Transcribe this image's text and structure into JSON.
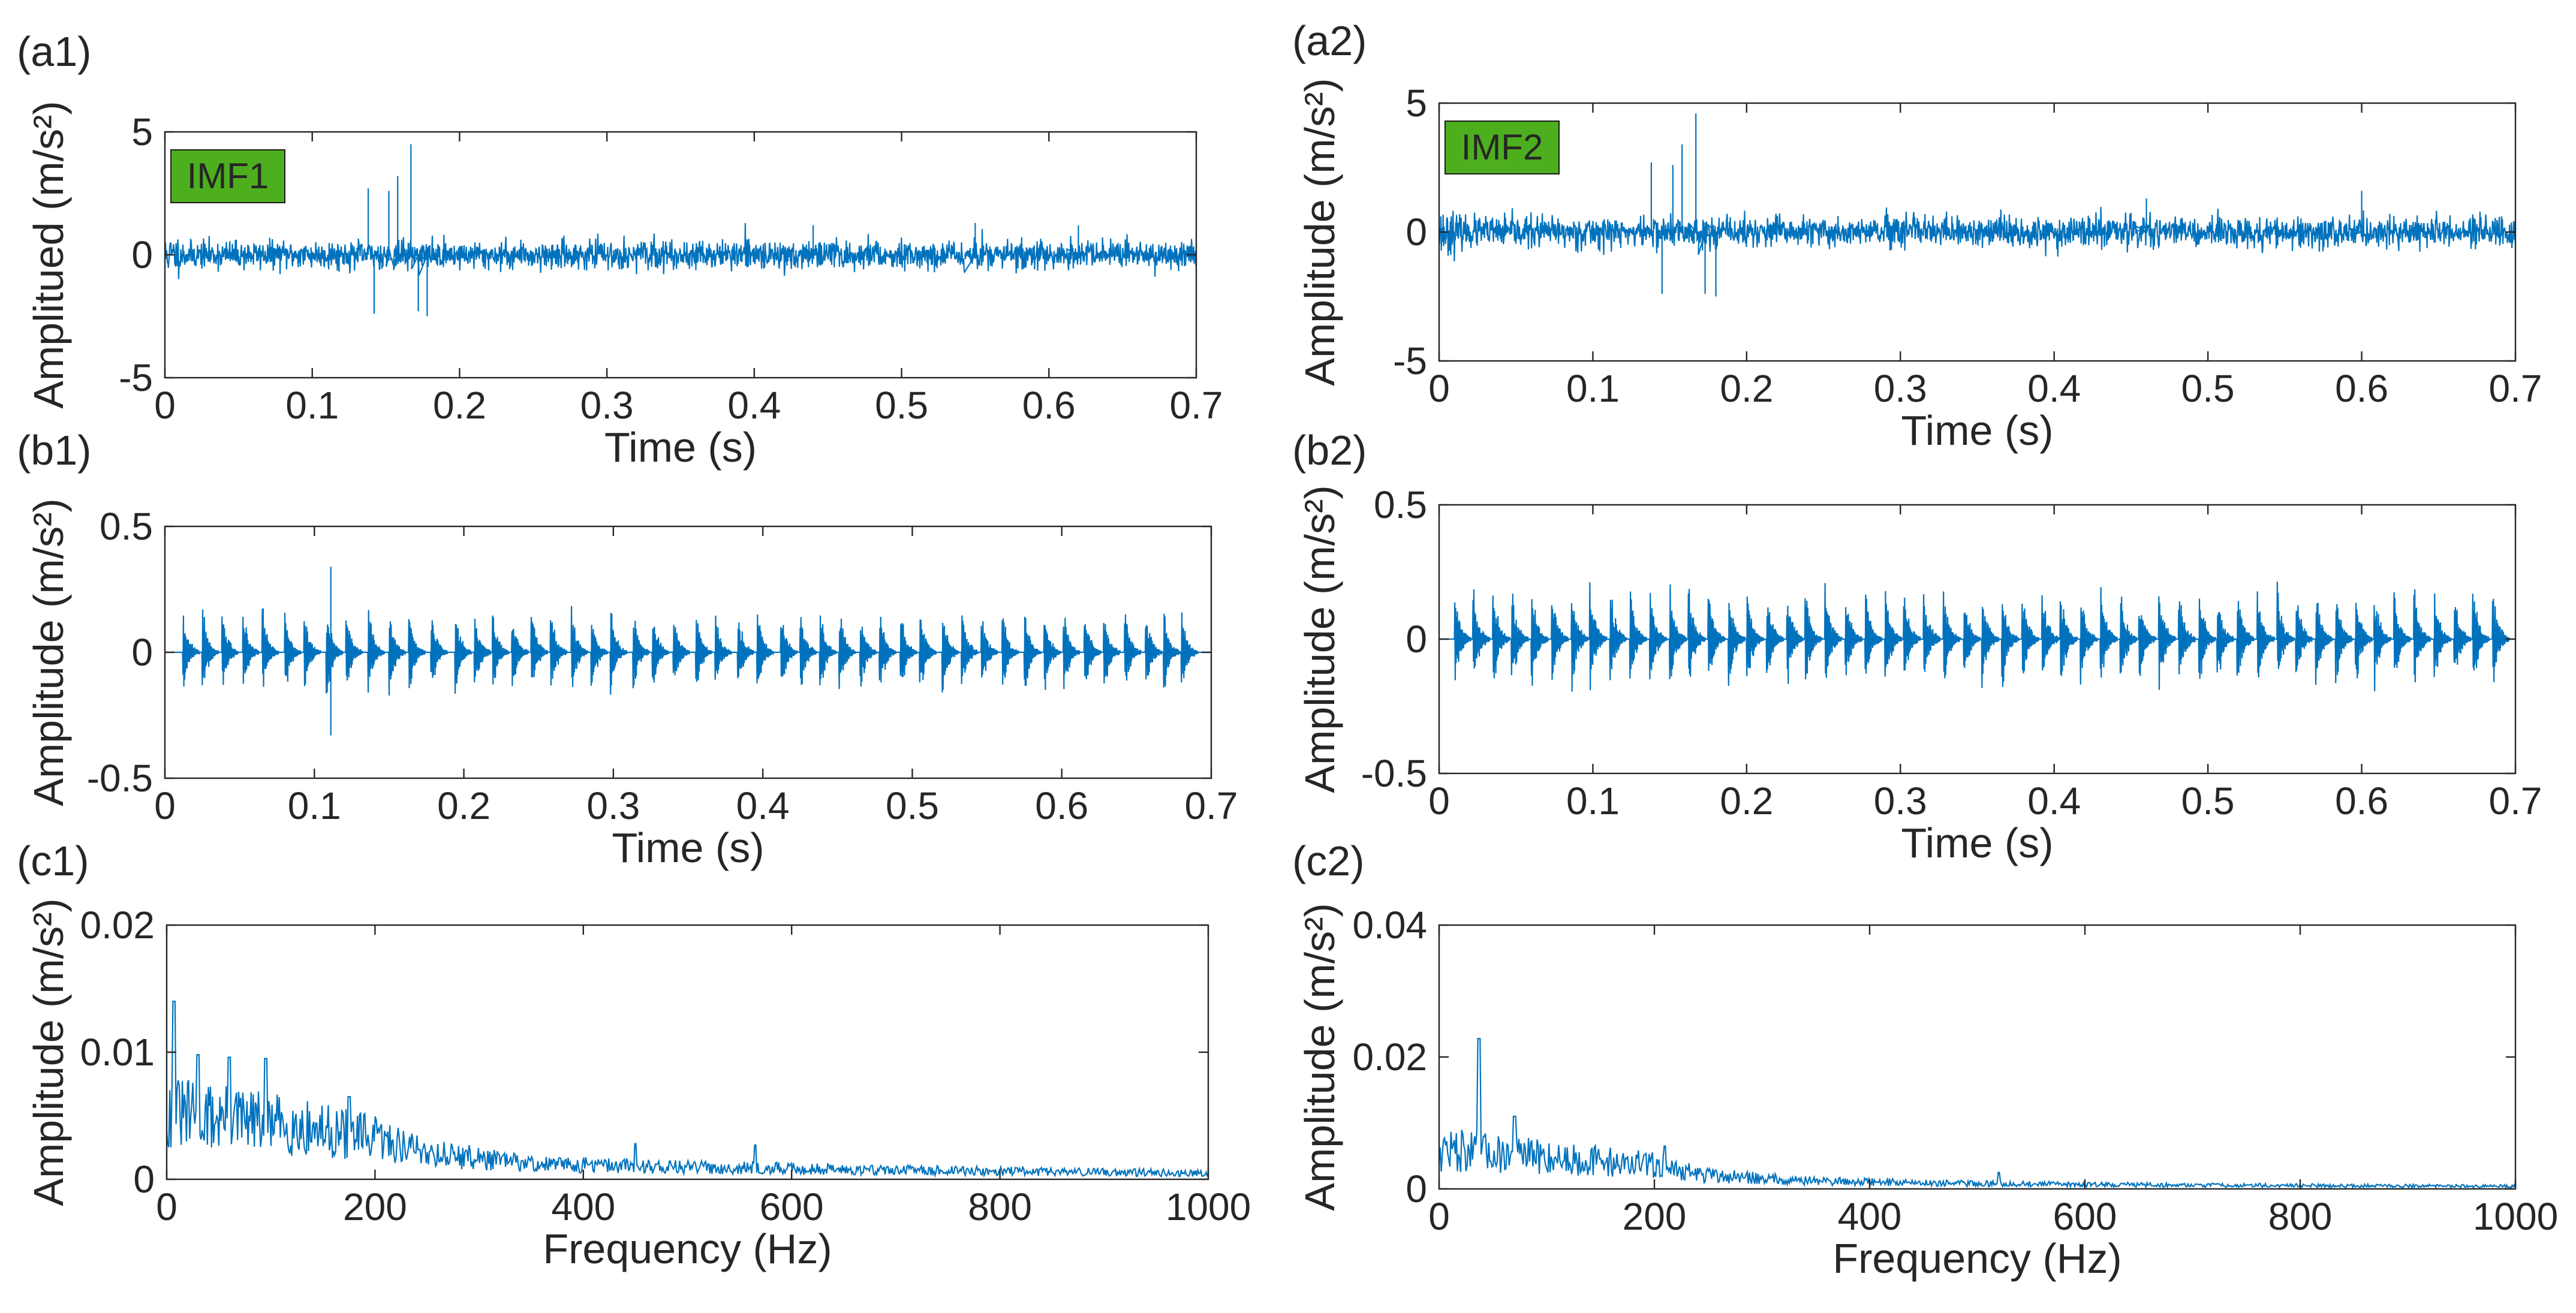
{
  "figure": {
    "colors": {
      "line": "#0072BD",
      "axis": "#262626",
      "badge_fill": "#4DAF1E",
      "background": "#ffffff"
    }
  },
  "chart_data": [
    {
      "id": "a1",
      "panel_label": "(a1)",
      "type": "line",
      "title": "",
      "badge": "IMF1",
      "xlabel": "Time (s)",
      "ylabel": "Amplitued (m/s²)",
      "xlim": [
        0,
        0.7
      ],
      "ylim": [
        -5,
        5
      ],
      "xticks": [
        0,
        0.1,
        0.2,
        0.3,
        0.4,
        0.5,
        0.6,
        0.7
      ],
      "xtick_labels": [
        "0",
        "0.1",
        "0.2",
        "0.3",
        "0.4",
        "0.5",
        "0.6",
        "0.7"
      ],
      "yticks": [
        -5,
        0,
        5
      ],
      "ytick_labels": [
        "-5",
        "0",
        "5"
      ],
      "signal": {
        "kind": "noise",
        "seed": 11,
        "npts": 2400,
        "base_amp": 0.28,
        "spikes": [
          [
            0.138,
            2.7
          ],
          [
            0.142,
            -2.4
          ],
          [
            0.152,
            2.6
          ],
          [
            0.158,
            3.2
          ],
          [
            0.167,
            4.5
          ],
          [
            0.172,
            -2.3
          ],
          [
            0.178,
            -2.5
          ],
          [
            0.44,
            1.2
          ],
          [
            0.55,
            1.3
          ],
          [
            0.62,
            1.2
          ]
        ]
      }
    },
    {
      "id": "a2",
      "panel_label": "(a2)",
      "type": "line",
      "title": "",
      "badge": "IMF2",
      "xlabel": "Time (s)",
      "ylabel": "Amplitude (m/s²)",
      "xlim": [
        0,
        0.7
      ],
      "ylim": [
        -5,
        5
      ],
      "xticks": [
        0,
        0.1,
        0.2,
        0.3,
        0.4,
        0.5,
        0.6,
        0.7
      ],
      "xtick_labels": [
        "0",
        "0.1",
        "0.2",
        "0.3",
        "0.4",
        "0.5",
        "0.6",
        "0.7"
      ],
      "yticks": [
        -5,
        0,
        5
      ],
      "ytick_labels": [
        "-5",
        "0",
        "5"
      ],
      "signal": {
        "kind": "noise",
        "seed": 23,
        "npts": 2400,
        "base_amp": 0.3,
        "spikes": [
          [
            0.138,
            2.7
          ],
          [
            0.145,
            -2.4
          ],
          [
            0.152,
            2.6
          ],
          [
            0.158,
            3.4
          ],
          [
            0.167,
            4.6
          ],
          [
            0.173,
            -2.4
          ],
          [
            0.18,
            -2.5
          ],
          [
            0.46,
            1.3
          ],
          [
            0.6,
            1.6
          ]
        ]
      }
    },
    {
      "id": "b1",
      "panel_label": "(b1)",
      "type": "line",
      "title": "",
      "badge": "",
      "xlabel": "Time (s)",
      "ylabel": "Amplitude (m/s²)",
      "xlim": [
        0,
        0.7
      ],
      "ylim": [
        -0.5,
        0.5
      ],
      "xticks": [
        0,
        0.1,
        0.2,
        0.3,
        0.4,
        0.5,
        0.6,
        0.7
      ],
      "xtick_labels": [
        "0",
        "0.1",
        "0.2",
        "0.3",
        "0.4",
        "0.5",
        "0.6",
        "0.7"
      ],
      "yticks": [
        -0.5,
        0,
        0.5
      ],
      "ytick_labels": [
        "-0.5",
        "0",
        "0.5"
      ],
      "signal": {
        "kind": "impulses",
        "seed": 5,
        "npts": 2600,
        "impulses": [
          0.012,
          0.025,
          0.038,
          0.052,
          0.065,
          0.08,
          0.093,
          0.108,
          0.121,
          0.136,
          0.15,
          0.163,
          0.178,
          0.194,
          0.207,
          0.219,
          0.232,
          0.245,
          0.258,
          0.272,
          0.285,
          0.298,
          0.313,
          0.326,
          0.34,
          0.355,
          0.368,
          0.383,
          0.396,
          0.412,
          0.425,
          0.438,
          0.451,
          0.465,
          0.478,
          0.492,
          0.505,
          0.52,
          0.533,
          0.546,
          0.56,
          0.575,
          0.588,
          0.601,
          0.615,
          0.628,
          0.642,
          0.656,
          0.668,
          0.68
        ],
        "peak": 0.22,
        "max_spike": [
          0.111,
          0.34,
          -0.33
        ]
      }
    },
    {
      "id": "b2",
      "panel_label": "(b2)",
      "type": "line",
      "title": "",
      "badge": "",
      "xlabel": "Time (s)",
      "ylabel": "Amplitude (m/s²)",
      "xlim": [
        0,
        0.7
      ],
      "ylim": [
        -0.5,
        0.5
      ],
      "xticks": [
        0,
        0.1,
        0.2,
        0.3,
        0.4,
        0.5,
        0.6,
        0.7
      ],
      "xtick_labels": [
        "0",
        "0.1",
        "0.2",
        "0.3",
        "0.4",
        "0.5",
        "0.6",
        "0.7"
      ],
      "yticks": [
        -0.5,
        0,
        0.5
      ],
      "ytick_labels": [
        "-0.5",
        "0",
        "0.5"
      ],
      "signal": {
        "kind": "impulses",
        "seed": 9,
        "npts": 2600,
        "impulses": [
          0.01,
          0.022,
          0.035,
          0.047,
          0.06,
          0.073,
          0.086,
          0.098,
          0.111,
          0.124,
          0.137,
          0.15,
          0.162,
          0.175,
          0.188,
          0.2,
          0.213,
          0.226,
          0.238,
          0.251,
          0.264,
          0.277,
          0.29,
          0.302,
          0.315,
          0.328,
          0.341,
          0.353,
          0.366,
          0.379,
          0.392,
          0.404,
          0.417,
          0.43,
          0.443,
          0.455,
          0.468,
          0.481,
          0.494,
          0.506,
          0.519,
          0.532,
          0.545,
          0.557,
          0.57,
          0.583,
          0.596,
          0.608,
          0.621,
          0.634,
          0.647,
          0.66,
          0.672,
          0.685
        ],
        "peak": 0.24,
        "max_spike": null
      }
    },
    {
      "id": "c1",
      "panel_label": "(c1)",
      "type": "line",
      "title": "",
      "badge": "",
      "xlabel": "Frequency (Hz)",
      "ylabel": "Amplitude (m/s²)",
      "xlim": [
        0,
        1000
      ],
      "ylim": [
        0,
        0.02
      ],
      "xticks": [
        0,
        200,
        400,
        600,
        800,
        1000
      ],
      "xtick_labels": [
        "0",
        "200",
        "400",
        "600",
        "800",
        "1000"
      ],
      "yticks": [
        0,
        0.01,
        0.02
      ],
      "ytick_labels": [
        "0",
        "0.01",
        "0.02"
      ],
      "signal": {
        "kind": "spectrum",
        "seed": 31,
        "npts": 1000,
        "decay": [
          [
            0,
            0.0065
          ],
          [
            100,
            0.0055
          ],
          [
            200,
            0.004
          ],
          [
            260,
            0.0025
          ],
          [
            350,
            0.0015
          ],
          [
            500,
            0.0012
          ],
          [
            700,
            0.0009
          ],
          [
            1000,
            0.0006
          ]
        ],
        "peaks": [
          [
            7,
            0.014
          ],
          [
            30,
            0.0098
          ],
          [
            60,
            0.0096
          ],
          [
            95,
            0.0095
          ],
          [
            175,
            0.0065
          ],
          [
            450,
            0.0028
          ],
          [
            565,
            0.0027
          ]
        ]
      }
    },
    {
      "id": "c2",
      "panel_label": "(c2)",
      "type": "line",
      "title": "",
      "badge": "",
      "xlabel": "Frequency (Hz)",
      "ylabel": "Amplitude (m/s²)",
      "xlim": [
        0,
        1000
      ],
      "ylim": [
        0,
        0.04
      ],
      "xticks": [
        0,
        200,
        400,
        600,
        800,
        1000
      ],
      "xtick_labels": [
        "0",
        "200",
        "400",
        "600",
        "800",
        "1000"
      ],
      "yticks": [
        0,
        0.02,
        0.04
      ],
      "ytick_labels": [
        "0",
        "0.02",
        "0.04"
      ],
      "signal": {
        "kind": "spectrum",
        "seed": 47,
        "npts": 1000,
        "decay": [
          [
            0,
            0.0075
          ],
          [
            100,
            0.006
          ],
          [
            200,
            0.0045
          ],
          [
            250,
            0.0025
          ],
          [
            350,
            0.0015
          ],
          [
            500,
            0.001
          ],
          [
            700,
            0.0007
          ],
          [
            1000,
            0.0005
          ]
        ],
        "peaks": [
          [
            37,
            0.0228
          ],
          [
            70,
            0.011
          ],
          [
            210,
            0.0065
          ],
          [
            520,
            0.0025
          ]
        ]
      }
    }
  ]
}
